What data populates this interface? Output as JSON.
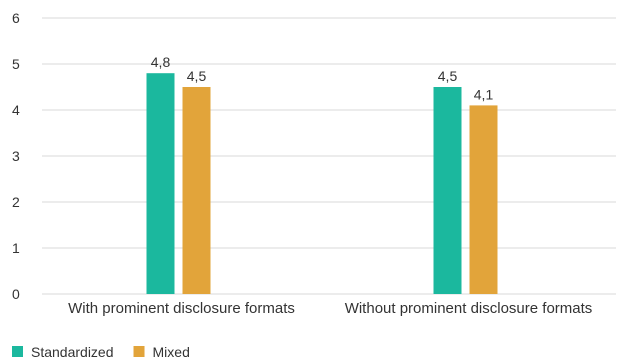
{
  "chart_data": {
    "type": "bar",
    "categories": [
      "With prominent disclosure formats",
      "Without prominent disclosure formats"
    ],
    "series": [
      {
        "name": "Standardized",
        "values": [
          4.8,
          4.5
        ],
        "labels": [
          "4,8",
          "4,5"
        ],
        "color": "#1bb89e"
      },
      {
        "name": "Mixed",
        "values": [
          4.5,
          4.1
        ],
        "labels": [
          "4,5",
          "4,1"
        ],
        "color": "#e2a43a"
      }
    ],
    "ylim": [
      0,
      6
    ],
    "yticks": [
      0,
      1,
      2,
      3,
      4,
      5,
      6
    ],
    "grid": true,
    "legend_position": "bottom-left",
    "title": "",
    "xlabel": "",
    "ylabel": ""
  }
}
